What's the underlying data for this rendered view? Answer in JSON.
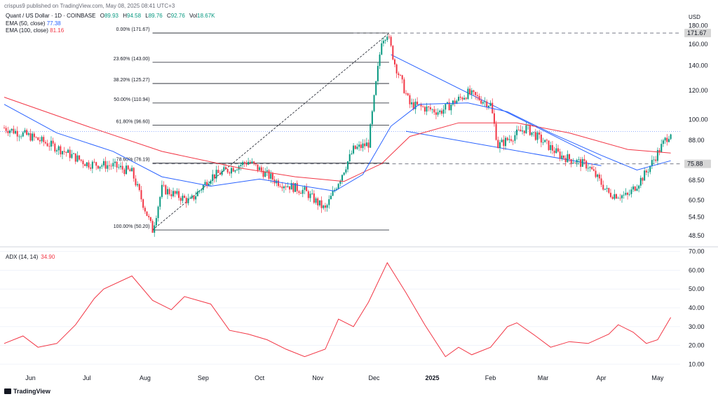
{
  "header": {
    "published": "crispus9 published on TradingView.com, May 08, 2025 08:41 UTC+3"
  },
  "legend": {
    "symbol": "Quant / US Dollar · 1D · COINBASE",
    "ohlc": {
      "o_label": "O",
      "o": "89.93",
      "h_label": "H",
      "h": "94.58",
      "l_label": "L",
      "l": "89.76",
      "c_label": "C",
      "c": "92.76",
      "vol_label": "Vol",
      "vol": "18.67K"
    },
    "ema50": {
      "label": "EMA (50, close)",
      "value": "77.38",
      "color": "#2962ff"
    },
    "ema100": {
      "label": "EMA (100, close)",
      "value": "81.16",
      "color": "#f23645"
    }
  },
  "adx_legend": {
    "label": "ADX (14, 14)",
    "value": "34.90",
    "color": "#f23645"
  },
  "currency": "USD",
  "branding": "TradingView",
  "colors": {
    "up": "#089981",
    "down": "#f23645",
    "ema50": "#2962ff",
    "ema100": "#f23645",
    "adx": "#f23645",
    "trendline": "#2962ff"
  },
  "chart_data": [
    {
      "type": "candlestick",
      "title": "Quant / US Dollar",
      "scale": "log",
      "ylim": [
        46,
        185
      ],
      "y_ticks": [
        180.0,
        160.0,
        140.0,
        120.0,
        100.0,
        88.0,
        68.5,
        60.5,
        54.5,
        48.5
      ],
      "x_ticks": [
        "Jun",
        "Jul",
        "Aug",
        "Sep",
        "Oct",
        "Nov",
        "Dec",
        "2025",
        "Feb",
        "Mar",
        "Apr",
        "May"
      ],
      "price_labels": [
        171.67,
        75.88
      ],
      "fibonacci": [
        {
          "label": "0.00% (171.67)",
          "price": 171.67
        },
        {
          "label": "23.60% (143.00)",
          "price": 143.0
        },
        {
          "label": "38.20% (125.27)",
          "price": 125.27
        },
        {
          "label": "50.00% (110.94)",
          "price": 110.94
        },
        {
          "label": "61.80% (96.60)",
          "price": 96.6
        },
        {
          "label": "78.60% (76.19)",
          "price": 76.19
        },
        {
          "label": "100.00% (50.20)",
          "price": 50.2
        }
      ],
      "horizontal_lines": [
        171.67,
        75.88,
        92.76
      ],
      "key_points": [
        {
          "date": "2024-05-18",
          "close": 95
        },
        {
          "date": "2024-06-01",
          "close": 90
        },
        {
          "date": "2024-06-15",
          "close": 84
        },
        {
          "date": "2024-07-01",
          "close": 76
        },
        {
          "date": "2024-07-15",
          "close": 75
        },
        {
          "date": "2024-07-25",
          "close": 72
        },
        {
          "date": "2024-08-05",
          "close": 50.2
        },
        {
          "date": "2024-08-10",
          "close": 65
        },
        {
          "date": "2024-08-25",
          "close": 60
        },
        {
          "date": "2024-09-05",
          "close": 70
        },
        {
          "date": "2024-09-25",
          "close": 77
        },
        {
          "date": "2024-10-10",
          "close": 68
        },
        {
          "date": "2024-10-25",
          "close": 64
        },
        {
          "date": "2024-11-05",
          "close": 57
        },
        {
          "date": "2024-11-12",
          "close": 68
        },
        {
          "date": "2024-11-20",
          "close": 83
        },
        {
          "date": "2024-11-28",
          "close": 86
        },
        {
          "date": "2024-12-05",
          "close": 165
        },
        {
          "date": "2024-12-08",
          "close": 171.67
        },
        {
          "date": "2024-12-12",
          "close": 142
        },
        {
          "date": "2024-12-20",
          "close": 110
        },
        {
          "date": "2025-01-05",
          "close": 105
        },
        {
          "date": "2025-01-20",
          "close": 118
        },
        {
          "date": "2025-02-01",
          "close": 110
        },
        {
          "date": "2025-02-05",
          "close": 85
        },
        {
          "date": "2025-02-20",
          "close": 95
        },
        {
          "date": "2025-03-10",
          "close": 80
        },
        {
          "date": "2025-03-25",
          "close": 75
        },
        {
          "date": "2025-04-05",
          "close": 63
        },
        {
          "date": "2025-04-15",
          "close": 62
        },
        {
          "date": "2025-04-25",
          "close": 72
        },
        {
          "date": "2025-05-05",
          "close": 88
        },
        {
          "date": "2025-05-08",
          "close": 92.76
        }
      ],
      "ema50": [
        {
          "date": "2024-05-18",
          "value": 110
        },
        {
          "date": "2024-06-15",
          "value": 92
        },
        {
          "date": "2024-07-15",
          "value": 82
        },
        {
          "date": "2024-08-10",
          "value": 70
        },
        {
          "date": "2024-09-05",
          "value": 66
        },
        {
          "date": "2024-10-01",
          "value": 69
        },
        {
          "date": "2024-11-10",
          "value": 64
        },
        {
          "date": "2024-11-25",
          "value": 71
        },
        {
          "date": "2024-12-10",
          "value": 96
        },
        {
          "date": "2024-12-25",
          "value": 110
        },
        {
          "date": "2025-01-20",
          "value": 111
        },
        {
          "date": "2025-02-10",
          "value": 105
        },
        {
          "date": "2025-03-05",
          "value": 92
        },
        {
          "date": "2025-04-01",
          "value": 80
        },
        {
          "date": "2025-04-20",
          "value": 73
        },
        {
          "date": "2025-05-08",
          "value": 77.38
        }
      ],
      "ema100": [
        {
          "date": "2024-05-18",
          "value": 115
        },
        {
          "date": "2024-07-01",
          "value": 96
        },
        {
          "date": "2024-08-10",
          "value": 82
        },
        {
          "date": "2024-09-20",
          "value": 74
        },
        {
          "date": "2024-10-20",
          "value": 70
        },
        {
          "date": "2024-11-15",
          "value": 68
        },
        {
          "date": "2024-12-05",
          "value": 76
        },
        {
          "date": "2024-12-20",
          "value": 90
        },
        {
          "date": "2025-01-15",
          "value": 98
        },
        {
          "date": "2025-02-15",
          "value": 98
        },
        {
          "date": "2025-03-15",
          "value": 92
        },
        {
          "date": "2025-04-15",
          "value": 83
        },
        {
          "date": "2025-05-08",
          "value": 81.16
        }
      ]
    },
    {
      "type": "line",
      "title": "ADX (14, 14)",
      "ylim": [
        6,
        71
      ],
      "y_ticks": [
        70.0,
        60.0,
        50.0,
        40.0,
        30.0,
        20.0,
        10.0
      ],
      "series": [
        {
          "name": "ADX (14, 14)",
          "points": [
            {
              "date": "2024-05-18",
              "value": 21
            },
            {
              "date": "2024-05-28",
              "value": 25
            },
            {
              "date": "2024-06-05",
              "value": 19
            },
            {
              "date": "2024-06-15",
              "value": 21
            },
            {
              "date": "2024-06-25",
              "value": 31
            },
            {
              "date": "2024-07-05",
              "value": 45
            },
            {
              "date": "2024-07-10",
              "value": 50
            },
            {
              "date": "2024-07-25",
              "value": 57
            },
            {
              "date": "2024-08-05",
              "value": 44
            },
            {
              "date": "2024-08-15",
              "value": 39
            },
            {
              "date": "2024-08-22",
              "value": 46
            },
            {
              "date": "2024-09-05",
              "value": 42
            },
            {
              "date": "2024-09-15",
              "value": 28
            },
            {
              "date": "2024-09-25",
              "value": 26
            },
            {
              "date": "2024-10-05",
              "value": 23
            },
            {
              "date": "2024-10-15",
              "value": 18
            },
            {
              "date": "2024-10-25",
              "value": 14
            },
            {
              "date": "2024-11-05",
              "value": 18
            },
            {
              "date": "2024-11-12",
              "value": 34
            },
            {
              "date": "2024-11-20",
              "value": 30
            },
            {
              "date": "2024-11-28",
              "value": 43
            },
            {
              "date": "2024-12-08",
              "value": 64
            },
            {
              "date": "2024-12-18",
              "value": 48
            },
            {
              "date": "2024-12-28",
              "value": 31
            },
            {
              "date": "2025-01-08",
              "value": 14
            },
            {
              "date": "2025-01-15",
              "value": 19
            },
            {
              "date": "2025-01-22",
              "value": 15
            },
            {
              "date": "2025-02-01",
              "value": 19
            },
            {
              "date": "2025-02-10",
              "value": 30
            },
            {
              "date": "2025-02-15",
              "value": 32
            },
            {
              "date": "2025-02-25",
              "value": 25
            },
            {
              "date": "2025-03-05",
              "value": 19
            },
            {
              "date": "2025-03-15",
              "value": 22
            },
            {
              "date": "2025-03-25",
              "value": 21
            },
            {
              "date": "2025-04-05",
              "value": 26
            },
            {
              "date": "2025-04-10",
              "value": 31
            },
            {
              "date": "2025-04-18",
              "value": 27
            },
            {
              "date": "2025-04-25",
              "value": 21
            },
            {
              "date": "2025-05-01",
              "value": 23
            },
            {
              "date": "2025-05-08",
              "value": 34.9
            }
          ]
        }
      ]
    }
  ]
}
